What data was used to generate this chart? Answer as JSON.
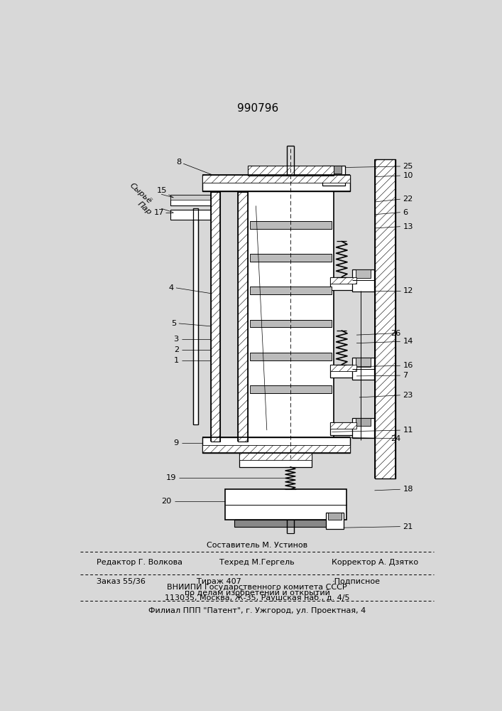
{
  "title": "990796",
  "bg_color": "#d8d8d8",
  "footer_line1_center_top": "Составитель М. Устинов",
  "footer_line1_left": "Редактор Г. Волкова",
  "footer_line1_center": "Техред М.Гергель",
  "footer_line1_right": "Корректор А. Дзятко",
  "footer_line2_col1": "Заказ 55/36",
  "footer_line2_col2": "Тираж 407",
  "footer_line2_col3": "·Подписное",
  "footer_line3": "ВНИИПИ Государственного комитета СССР",
  "footer_line4": "по делам изобретений и открытий",
  "footer_line5": "113035, Москва, Ж-35, Раушская наб., д. 4/5",
  "footer_line6": "Филиал ППП \"Патент\", г. Ужгород, ул. Проектная, 4",
  "label_syrye": "Сырьё",
  "label_par": "Пар"
}
